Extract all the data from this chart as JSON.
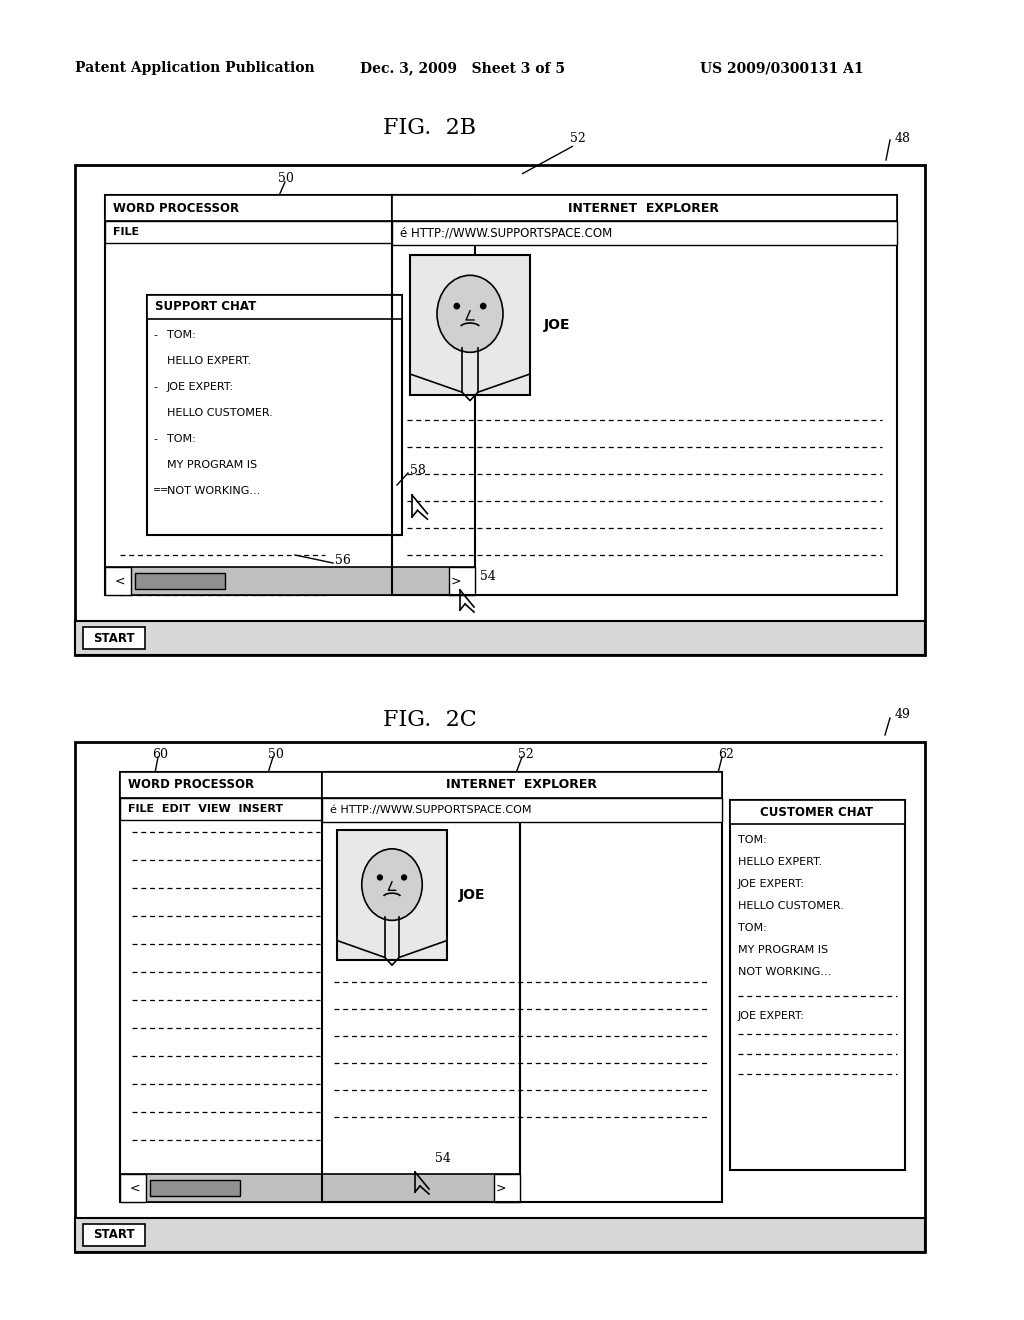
{
  "background_color": "#ffffff",
  "header_left": "Patent Application Publication",
  "header_mid": "Dec. 3, 2009   Sheet 3 of 5",
  "header_right": "US 2009/0300131 A1",
  "fig2b_title": "FIG.  2B",
  "fig2b_label": "48",
  "fig2b_num_label": "52",
  "fig2b_wp_label": "50",
  "fig2c_title": "FIG.  2C",
  "fig2c_label": "49",
  "fig2c_num_label": "52",
  "fig2c_wp_label": "50",
  "fig2c_extra_label": "60",
  "fig2c_chat_label": "62"
}
